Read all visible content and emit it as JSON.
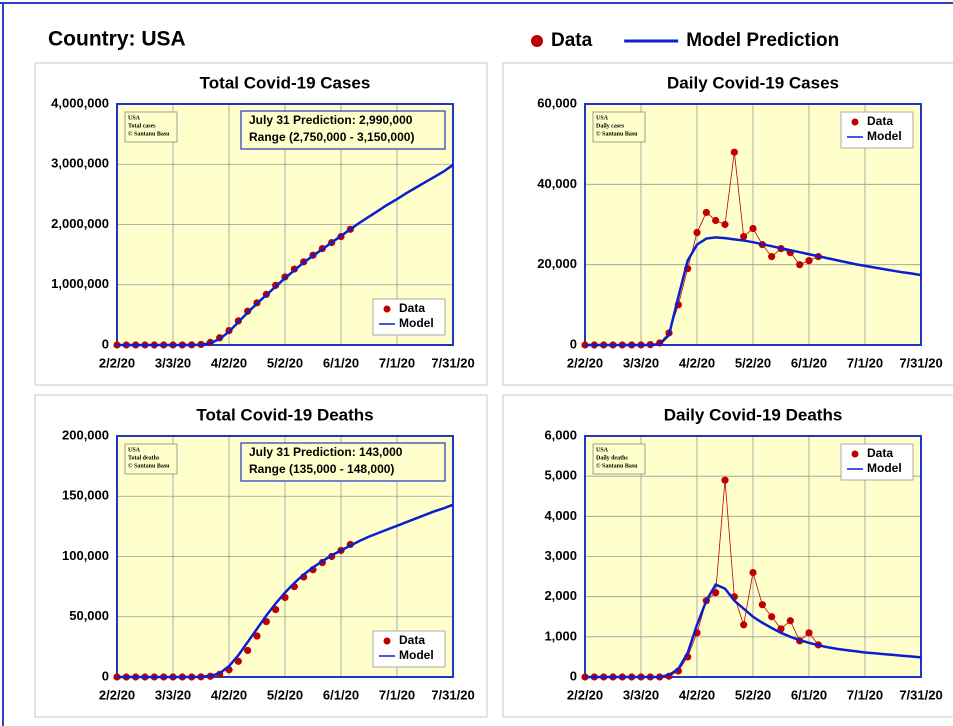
{
  "header": {
    "title": "Country: USA",
    "legend": [
      {
        "name": "Data",
        "color": "#c00000"
      },
      {
        "name": "Model Prediction",
        "color": "#0a1fd0"
      }
    ]
  },
  "chart_data": [
    {
      "type": "scatter",
      "title": "Total Covid-19 Cases",
      "note": [
        "USA",
        "Total cases",
        "© Santanu Basu"
      ],
      "prediction": [
        "July 31 Prediction:  2,990,000",
        "Range (2,750,000 - 3,150,000)"
      ],
      "legend": "lower right",
      "data_line": false,
      "grid": true,
      "x": [
        "2/2/20",
        "2/7/20",
        "2/12/20",
        "2/17/20",
        "2/22/20",
        "2/27/20",
        "3/3/20",
        "3/8/20",
        "3/13/20",
        "3/18/20",
        "3/23/20",
        "3/28/20",
        "4/2/20",
        "4/7/20",
        "4/12/20",
        "4/17/20",
        "4/22/20",
        "4/27/20",
        "5/2/20",
        "5/7/20",
        "5/12/20",
        "5/17/20",
        "5/22/20",
        "5/27/20",
        "6/1/20",
        "6/6/20",
        "6/11/20",
        "6/16/20",
        "6/21/20",
        "6/26/20",
        "7/1/20",
        "7/6/20",
        "7/11/20",
        "7/16/20",
        "7/21/20",
        "7/26/20",
        "7/31/20"
      ],
      "xticks": [
        "2/2/20",
        "3/3/20",
        "4/2/20",
        "5/2/20",
        "6/1/20",
        "7/1/20",
        "7/31/20"
      ],
      "ylim": [
        0,
        4000000
      ],
      "yticks": [
        0,
        {
          "value": 1000000,
          "label": "1,000,000"
        },
        {
          "value": 2000000,
          "label": "2,000,000"
        },
        {
          "value": 3000000,
          "label": "3,000,000"
        },
        {
          "value": 4000000,
          "label": "4,000,000"
        }
      ],
      "series": [
        {
          "name": "Data",
          "kind": "points",
          "color": "#c00000",
          "values": [
            0,
            0,
            0,
            0,
            0,
            0,
            100,
            500,
            2000,
            9000,
            43000,
            120000,
            240000,
            400000,
            560000,
            700000,
            840000,
            990000,
            1130000,
            1260000,
            1380000,
            1490000,
            1600000,
            1700000,
            1800000,
            1920000,
            null,
            null,
            null,
            null,
            null,
            null,
            null,
            null,
            null,
            null,
            null
          ]
        },
        {
          "name": "Model",
          "kind": "line",
          "color": "#0a1fd0",
          "values": [
            0,
            0,
            0,
            0,
            0,
            0,
            0,
            0,
            500,
            5000,
            30000,
            100000,
            220000,
            380000,
            540000,
            690000,
            830000,
            970000,
            1110000,
            1240000,
            1370000,
            1480000,
            1590000,
            1700000,
            1810000,
            1920000,
            2030000,
            2130000,
            2230000,
            2330000,
            2420000,
            2520000,
            2610000,
            2700000,
            2790000,
            2880000,
            2990000
          ]
        }
      ]
    },
    {
      "type": "scatter",
      "title": "Daily Covid-19 Cases",
      "note": [
        "USA",
        "Daily cases",
        "© Santanu Basu"
      ],
      "legend": "upper right",
      "data_line": true,
      "grid": true,
      "x": [
        "2/2/20",
        "2/7/20",
        "2/12/20",
        "2/17/20",
        "2/22/20",
        "2/27/20",
        "3/3/20",
        "3/8/20",
        "3/13/20",
        "3/18/20",
        "3/23/20",
        "3/28/20",
        "4/2/20",
        "4/7/20",
        "4/12/20",
        "4/17/20",
        "4/22/20",
        "4/27/20",
        "5/2/20",
        "5/7/20",
        "5/12/20",
        "5/17/20",
        "5/22/20",
        "5/27/20",
        "6/1/20",
        "6/6/20",
        "6/11/20",
        "6/16/20",
        "6/21/20",
        "6/26/20",
        "7/1/20",
        "7/6/20",
        "7/11/20",
        "7/16/20",
        "7/21/20",
        "7/26/20",
        "7/31/20"
      ],
      "xticks": [
        "2/2/20",
        "3/3/20",
        "4/2/20",
        "5/2/20",
        "6/1/20",
        "7/1/20",
        "7/31/20"
      ],
      "ylim": [
        0,
        60000
      ],
      "yticks": [
        0,
        {
          "value": 20000,
          "label": "20,000"
        },
        {
          "value": 40000,
          "label": "40,000"
        },
        {
          "value": 60000,
          "label": "60,000"
        }
      ],
      "series": [
        {
          "name": "Data",
          "kind": "points",
          "color": "#c00000",
          "values": [
            0,
            0,
            0,
            0,
            0,
            0,
            0,
            100,
            500,
            3000,
            10000,
            19000,
            28000,
            33000,
            31000,
            30000,
            48000,
            27000,
            29000,
            25000,
            22000,
            24000,
            23000,
            20000,
            21000,
            22000,
            null,
            null,
            null,
            null,
            null,
            null,
            null,
            null,
            null,
            null,
            null
          ]
        },
        {
          "name": "Model",
          "kind": "line",
          "color": "#0a1fd0",
          "values": [
            0,
            0,
            0,
            0,
            0,
            0,
            0,
            0,
            200,
            2500,
            12000,
            21000,
            25000,
            26500,
            26800,
            26600,
            26300,
            26000,
            25600,
            25100,
            24600,
            24100,
            23600,
            23100,
            22600,
            22100,
            21600,
            21100,
            20600,
            20100,
            19700,
            19300,
            18900,
            18500,
            18100,
            17800,
            17400
          ]
        }
      ]
    },
    {
      "type": "scatter",
      "title": "Total Covid-19 Deaths",
      "note": [
        "USA",
        "Total deaths",
        "© Santanu Basu"
      ],
      "prediction": [
        "July 31 Prediction:  143,000",
        "Range (135,000 - 148,000)"
      ],
      "legend": "lower right",
      "data_line": false,
      "grid": true,
      "x": [
        "2/2/20",
        "2/7/20",
        "2/12/20",
        "2/17/20",
        "2/22/20",
        "2/27/20",
        "3/3/20",
        "3/8/20",
        "3/13/20",
        "3/18/20",
        "3/23/20",
        "3/28/20",
        "4/2/20",
        "4/7/20",
        "4/12/20",
        "4/17/20",
        "4/22/20",
        "4/27/20",
        "5/2/20",
        "5/7/20",
        "5/12/20",
        "5/17/20",
        "5/22/20",
        "5/27/20",
        "6/1/20",
        "6/6/20",
        "6/11/20",
        "6/16/20",
        "6/21/20",
        "6/26/20",
        "7/1/20",
        "7/6/20",
        "7/11/20",
        "7/16/20",
        "7/21/20",
        "7/26/20",
        "7/31/20"
      ],
      "xticks": [
        "2/2/20",
        "3/3/20",
        "4/2/20",
        "5/2/20",
        "6/1/20",
        "7/1/20",
        "7/31/20"
      ],
      "ylim": [
        0,
        200000
      ],
      "yticks": [
        0,
        {
          "value": 50000,
          "label": "50,000"
        },
        {
          "value": 100000,
          "label": "100,000"
        },
        {
          "value": 150000,
          "label": "150,000"
        },
        {
          "value": 200000,
          "label": "200,000"
        }
      ],
      "series": [
        {
          "name": "Data",
          "kind": "points",
          "color": "#c00000",
          "values": [
            0,
            0,
            0,
            0,
            0,
            0,
            0,
            0,
            0,
            100,
            600,
            2200,
            6000,
            13000,
            22000,
            34000,
            46000,
            56000,
            66000,
            75000,
            83000,
            89000,
            95000,
            100000,
            105000,
            110000,
            null,
            null,
            null,
            null,
            null,
            null,
            null,
            null,
            null,
            null,
            null
          ]
        },
        {
          "name": "Model",
          "kind": "line",
          "color": "#0a1fd0",
          "values": [
            0,
            0,
            0,
            0,
            0,
            0,
            0,
            0,
            0,
            200,
            900,
            3000,
            9000,
            18000,
            29000,
            40000,
            51000,
            61000,
            70000,
            78000,
            85000,
            91000,
            96000,
            101000,
            105000,
            109000,
            113000,
            116500,
            119500,
            122500,
            125500,
            128500,
            131500,
            134500,
            137500,
            140000,
            143000
          ]
        }
      ]
    },
    {
      "type": "scatter",
      "title": "Daily Covid-19 Deaths",
      "note": [
        "USA",
        "Daily deaths",
        "© Santanu Basu"
      ],
      "legend": "upper right",
      "data_line": true,
      "grid": true,
      "x": [
        "2/2/20",
        "2/7/20",
        "2/12/20",
        "2/17/20",
        "2/22/20",
        "2/27/20",
        "3/3/20",
        "3/8/20",
        "3/13/20",
        "3/18/20",
        "3/23/20",
        "3/28/20",
        "4/2/20",
        "4/7/20",
        "4/12/20",
        "4/17/20",
        "4/22/20",
        "4/27/20",
        "5/2/20",
        "5/7/20",
        "5/12/20",
        "5/17/20",
        "5/22/20",
        "5/27/20",
        "6/1/20",
        "6/6/20",
        "6/11/20",
        "6/16/20",
        "6/21/20",
        "6/26/20",
        "7/1/20",
        "7/6/20",
        "7/11/20",
        "7/16/20",
        "7/21/20",
        "7/26/20",
        "7/31/20"
      ],
      "xticks": [
        "2/2/20",
        "3/3/20",
        "4/2/20",
        "5/2/20",
        "6/1/20",
        "7/1/20",
        "7/31/20"
      ],
      "ylim": [
        0,
        6000
      ],
      "yticks": [
        0,
        {
          "value": 1000,
          "label": "1,000"
        },
        {
          "value": 2000,
          "label": "2,000"
        },
        {
          "value": 3000,
          "label": "3,000"
        },
        {
          "value": 4000,
          "label": "4,000"
        },
        {
          "value": 5000,
          "label": "5,000"
        },
        {
          "value": 6000,
          "label": "6,000"
        }
      ],
      "series": [
        {
          "name": "Data",
          "kind": "points",
          "color": "#c00000",
          "values": [
            0,
            0,
            0,
            0,
            0,
            0,
            0,
            0,
            0,
            20,
            150,
            500,
            1100,
            1900,
            2100,
            4900,
            2000,
            1300,
            2600,
            1800,
            1500,
            1200,
            1400,
            900,
            1100,
            800,
            null,
            null,
            null,
            null,
            null,
            null,
            null,
            null,
            null,
            null,
            null
          ]
        },
        {
          "name": "Model",
          "kind": "line",
          "color": "#0a1fd0",
          "values": [
            0,
            0,
            0,
            0,
            0,
            0,
            0,
            0,
            0,
            50,
            200,
            600,
            1300,
            1900,
            2300,
            2200,
            1900,
            1700,
            1500,
            1350,
            1220,
            1100,
            1000,
            920,
            850,
            790,
            740,
            700,
            670,
            640,
            610,
            590,
            570,
            550,
            530,
            510,
            490
          ]
        }
      ]
    }
  ]
}
